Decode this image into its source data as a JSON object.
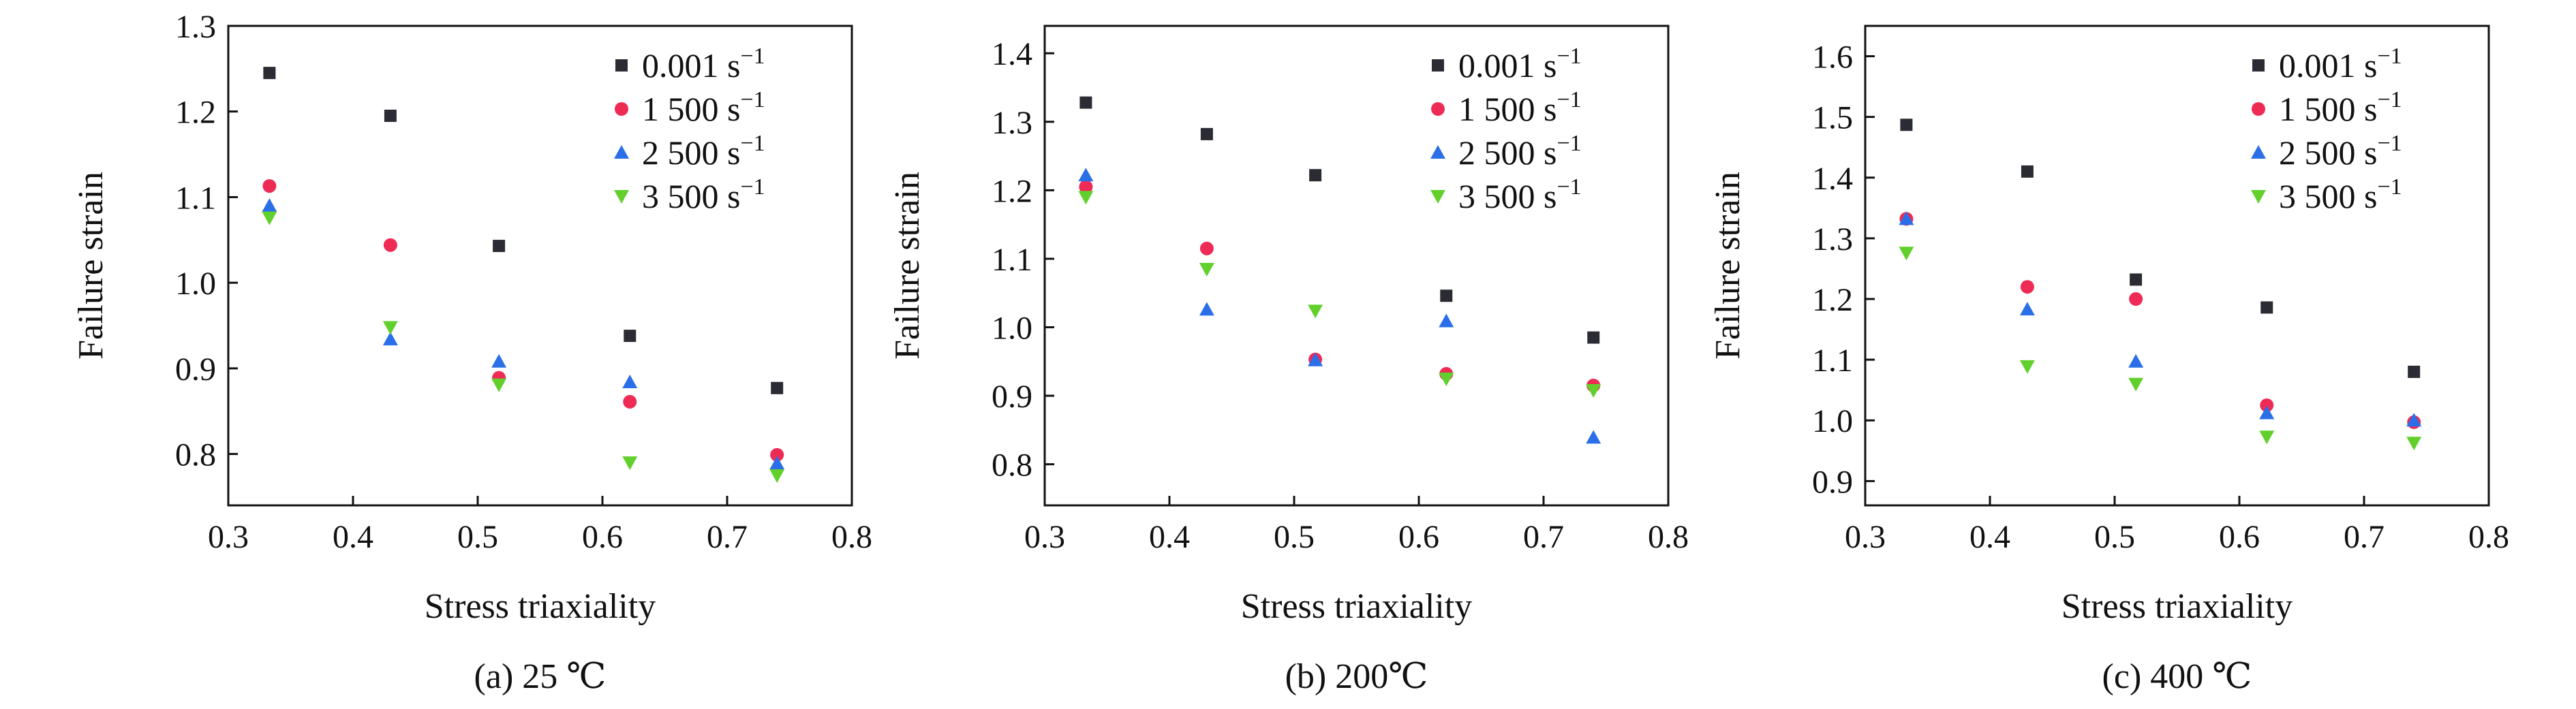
{
  "chart_data": [
    {
      "type": "scatter",
      "caption": "(a) 25 ℃",
      "xlabel": "Stress triaxiality",
      "ylabel": "Failure strain",
      "xlim": [
        0.3,
        0.8
      ],
      "ylim": [
        0.74,
        1.3
      ],
      "xticks": [
        "0.3",
        "0.4",
        "0.5",
        "0.6",
        "0.7",
        "0.8"
      ],
      "yticks": [
        "0.8",
        "0.9",
        "1.0",
        "1.1",
        "1.2",
        "1.3"
      ],
      "x": [
        0.333,
        0.43,
        0.517,
        0.622,
        0.74
      ],
      "series": [
        {
          "name": "0.001",
          "unit": "s",
          "exp": "−1",
          "marker": "square",
          "color": "#2b2b33",
          "values": [
            1.245,
            1.195,
            1.043,
            0.938,
            0.877
          ]
        },
        {
          "name": "1 500",
          "unit": "s",
          "exp": "−1",
          "marker": "circle",
          "color": "#ee2b55",
          "values": [
            1.113,
            1.044,
            0.889,
            0.861,
            0.799
          ]
        },
        {
          "name": "2 500",
          "unit": "s",
          "exp": "−1",
          "marker": "triangle-up",
          "color": "#2b6fe8",
          "values": [
            1.09,
            0.934,
            0.908,
            0.884,
            0.789
          ]
        },
        {
          "name": "3 500",
          "unit": "s",
          "exp": "−1",
          "marker": "triangle-down",
          "color": "#62d02c",
          "values": [
            1.076,
            0.948,
            0.881,
            0.79,
            0.775
          ]
        }
      ],
      "legend": "top-right"
    },
    {
      "type": "scatter",
      "caption": "(b) 200℃",
      "xlabel": "Stress triaxiality",
      "ylabel": "Failure strain",
      "xlim": [
        0.3,
        0.8
      ],
      "ylim": [
        0.74,
        1.44
      ],
      "xticks": [
        "0.3",
        "0.4",
        "0.5",
        "0.6",
        "0.7",
        "0.8"
      ],
      "yticks": [
        "0.8",
        "0.9",
        "1.0",
        "1.1",
        "1.2",
        "1.3",
        "1.4"
      ],
      "x": [
        0.333,
        0.43,
        0.517,
        0.622,
        0.74
      ],
      "series": [
        {
          "name": "0.001",
          "unit": "s",
          "exp": "−1",
          "marker": "square",
          "color": "#2b2b33",
          "values": [
            1.328,
            1.282,
            1.222,
            1.046,
            0.985
          ]
        },
        {
          "name": "1 500",
          "unit": "s",
          "exp": "−1",
          "marker": "circle",
          "color": "#ee2b55",
          "values": [
            1.205,
            1.115,
            0.953,
            0.932,
            0.915
          ]
        },
        {
          "name": "2 500",
          "unit": "s",
          "exp": "−1",
          "marker": "triangle-up",
          "color": "#2b6fe8",
          "values": [
            1.222,
            1.026,
            0.952,
            1.009,
            0.839
          ]
        },
        {
          "name": "3 500",
          "unit": "s",
          "exp": "−1",
          "marker": "triangle-down",
          "color": "#62d02c",
          "values": [
            1.19,
            1.085,
            1.024,
            0.925,
            0.908
          ]
        }
      ],
      "legend": "top-right"
    },
    {
      "type": "scatter",
      "caption": "(c) 400 ℃",
      "xlabel": "Stress triaxiality",
      "ylabel": "Failure strain",
      "xlim": [
        0.3,
        0.8
      ],
      "ylim": [
        0.86,
        1.65
      ],
      "xticks": [
        "0.3",
        "0.4",
        "0.5",
        "0.6",
        "0.7",
        "0.8"
      ],
      "yticks": [
        "0.9",
        "1.0",
        "1.1",
        "1.2",
        "1.3",
        "1.4",
        "1.5",
        "1.6"
      ],
      "x": [
        0.333,
        0.43,
        0.517,
        0.622,
        0.74
      ],
      "series": [
        {
          "name": "0.001",
          "unit": "s",
          "exp": "−1",
          "marker": "square",
          "color": "#2b2b33",
          "values": [
            1.487,
            1.41,
            1.232,
            1.186,
            1.08
          ]
        },
        {
          "name": "1 500",
          "unit": "s",
          "exp": "−1",
          "marker": "circle",
          "color": "#ee2b55",
          "values": [
            1.332,
            1.22,
            1.2,
            1.025,
            0.997
          ]
        },
        {
          "name": "2 500",
          "unit": "s",
          "exp": "−1",
          "marker": "triangle-up",
          "color": "#2b6fe8",
          "values": [
            1.332,
            1.183,
            1.097,
            1.012,
            1.0
          ]
        },
        {
          "name": "3 500",
          "unit": "s",
          "exp": "−1",
          "marker": "triangle-down",
          "color": "#62d02c",
          "values": [
            1.276,
            1.089,
            1.06,
            0.973,
            0.963
          ]
        }
      ],
      "legend": "top-right"
    }
  ]
}
